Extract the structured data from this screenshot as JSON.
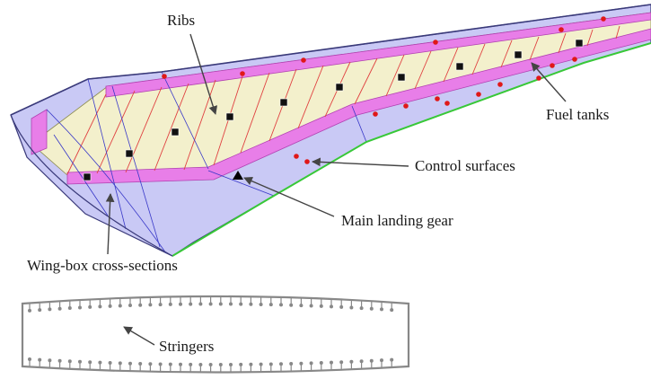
{
  "labels": {
    "ribs": "Ribs",
    "fuel_tanks": "Fuel tanks",
    "control_surfaces": "Control surfaces",
    "main_landing_gear": "Main landing gear",
    "wing_box_cross_sections": "Wing-box cross-sections",
    "stringers": "Stringers"
  },
  "colors": {
    "wing_surface": "#c9c9f5",
    "wing_box": "#f3f0cc",
    "spar_web": "#e87ee8",
    "rib_lines": "#e04040",
    "section_lines": "#3838c8",
    "outline": "#3a3a7a",
    "trailing_edge": "#38c838",
    "control_point": "#e01818",
    "fuel_tank_marker": "#111111",
    "stringer": "#888888"
  }
}
